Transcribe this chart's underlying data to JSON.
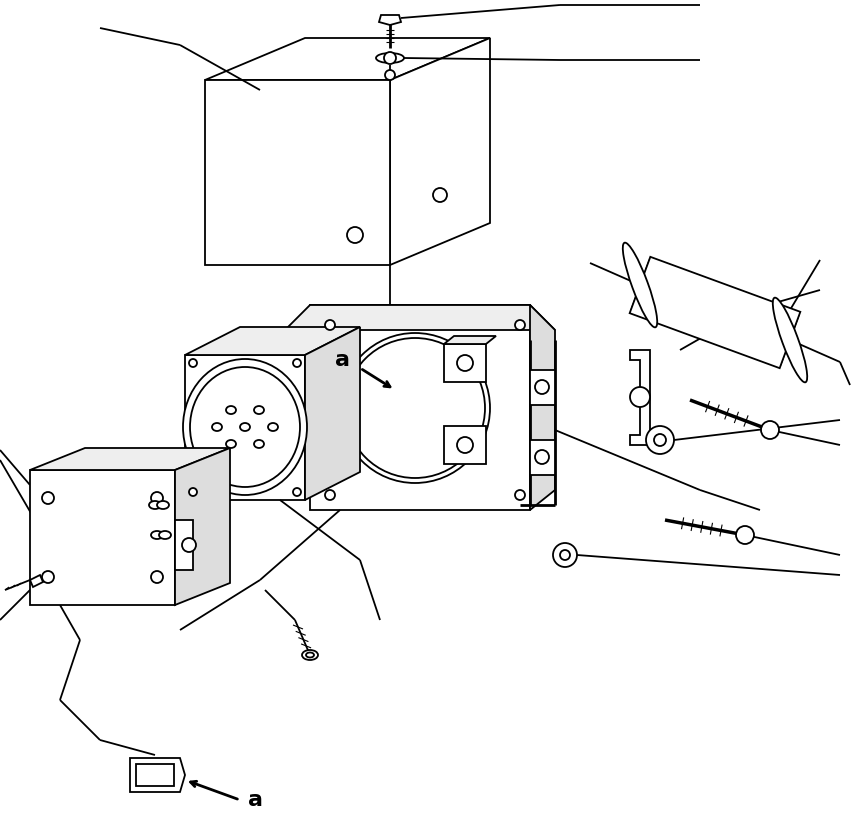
{
  "bg_color": "#ffffff",
  "line_color": "#000000",
  "lw": 1.3,
  "fig_width": 8.55,
  "fig_height": 8.34,
  "font_size": 14
}
